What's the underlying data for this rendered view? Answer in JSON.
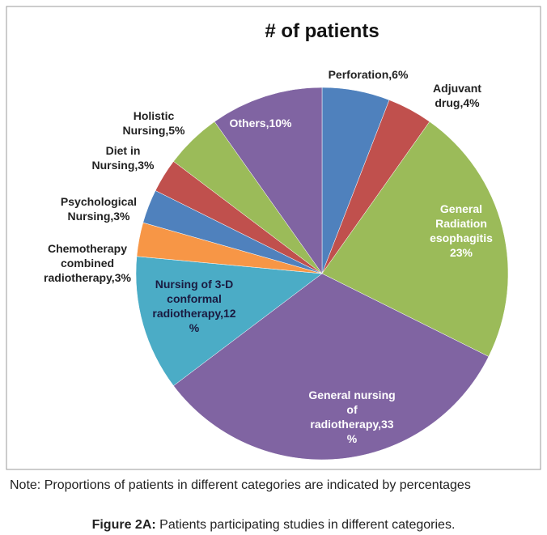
{
  "chart_data": {
    "type": "pie",
    "title": "# of patients",
    "values": [
      6,
      4,
      23,
      33,
      12,
      3,
      3,
      3,
      5,
      10
    ],
    "value_labels": [
      "Perforation,6%",
      "Adjuvant\ndrug,4%",
      "General\nRadiation\nesophagitis\n23%",
      "General nursing\nof\nradiotherapy,33\n%",
      "Nursing of 3-D\nconformal\nradiotherapy,12\n%",
      "Chemotherapy\ncombined\nradiotherapy,3%",
      "Psychological\nNursing,3%",
      "Diet in\nNursing,3%",
      "Holistic\nNursing,5%",
      "Others,10%"
    ],
    "colors": [
      "#4f81bd",
      "#c0504d",
      "#9bbb59",
      "#8064a2",
      "#4bacc6",
      "#f79646",
      "#4f81bd",
      "#c0504d",
      "#9bbb59",
      "#8064a2"
    ]
  },
  "note": "Note: Proportions of patients in different categories are indicated by percentages",
  "caption": {
    "label": "Figure 2A:",
    "text": " Patients participating studies in different categories."
  }
}
